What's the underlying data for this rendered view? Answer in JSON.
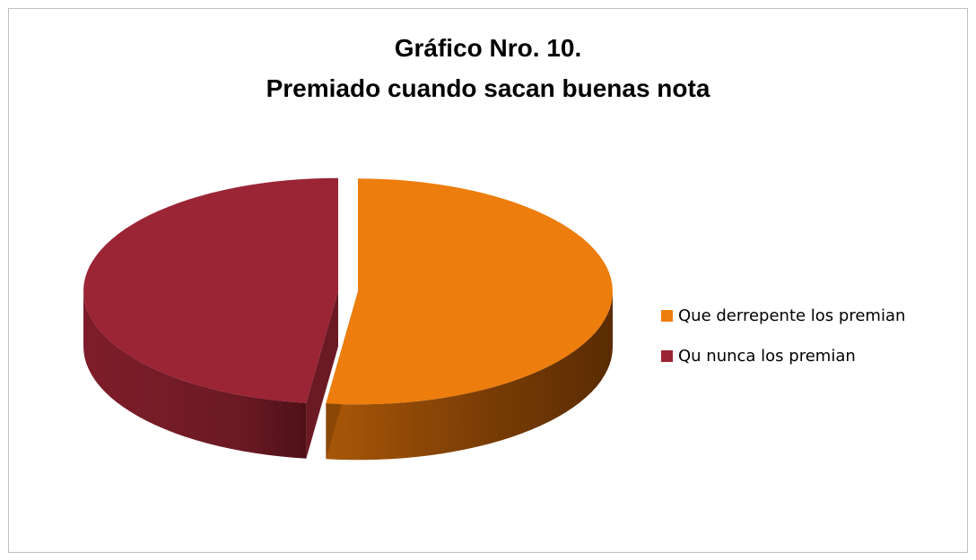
{
  "chart_data": {
    "type": "pie",
    "style": "3d-exploded",
    "title": [
      "Gráfico Nro. 10.",
      "Premiado cuando sacan buenas nota"
    ],
    "slices": [
      {
        "label": "Que derrepente los premian",
        "value": 52,
        "color": "#ed7d0c",
        "side_color": "#8a4706"
      },
      {
        "label": "Qu nunca los premian",
        "value": 48,
        "color": "#9b2535",
        "side_color": "#6b1a24"
      }
    ],
    "legend_position": "right"
  }
}
